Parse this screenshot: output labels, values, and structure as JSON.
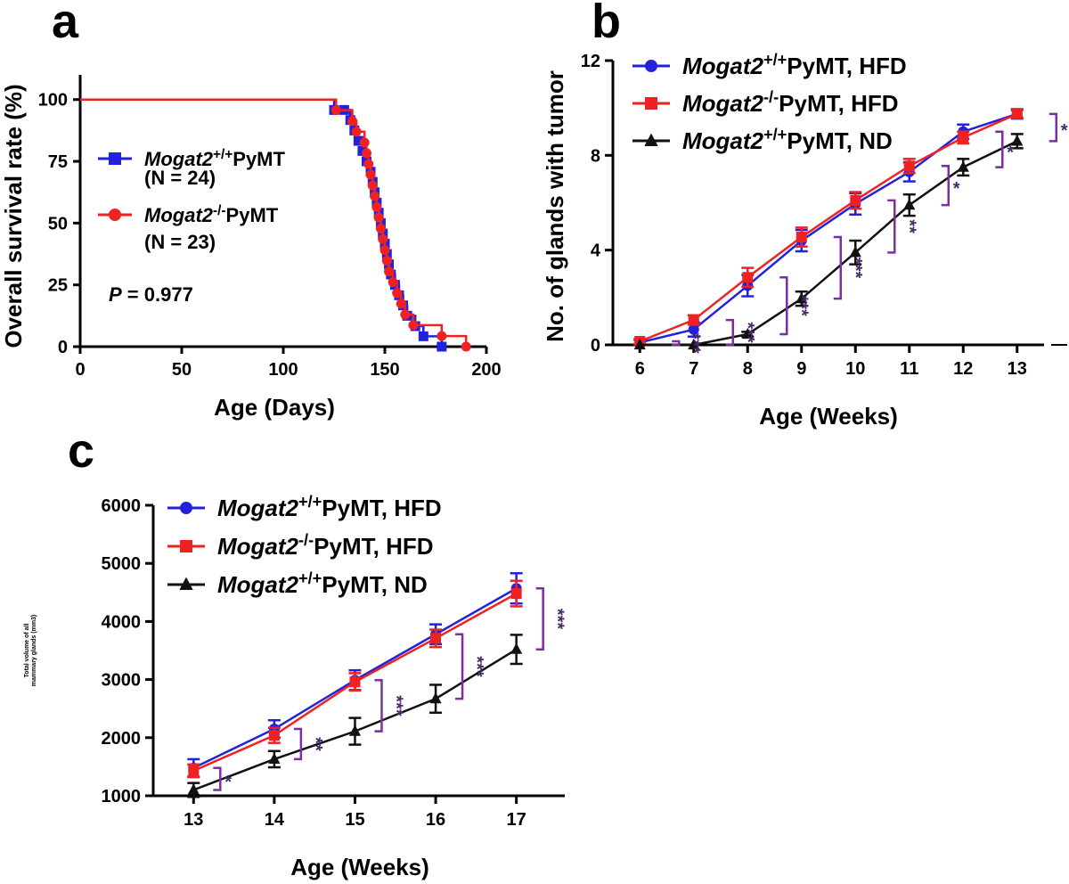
{
  "chart_data": [
    {
      "panel": "a",
      "type": "line",
      "subtype": "step-survival",
      "title": "",
      "xlabel": "Age (Days)",
      "ylabel": "Overall survival rate (%)",
      "xlim": [
        0,
        200
      ],
      "ylim": [
        0,
        110
      ],
      "xticks": [
        0,
        50,
        100,
        150,
        200
      ],
      "yticks": [
        0,
        25,
        50,
        75,
        100
      ],
      "series": [
        {
          "name": "Mogat2",
          "superscript": "+/+",
          "suffix": "PyMT",
          "n_label": "(N = 24)",
          "color": "#2222dd",
          "marker": "square",
          "x": [
            0,
            125,
            130,
            133,
            135,
            137,
            139,
            141,
            143,
            144,
            145,
            146,
            147,
            148,
            149,
            150,
            151,
            152,
            153,
            155,
            157,
            159,
            161,
            165,
            169,
            178
          ],
          "y": [
            100,
            95.8,
            95.8,
            91.7,
            87.5,
            83.3,
            79.2,
            75,
            70.8,
            66.7,
            62.5,
            58.3,
            54.2,
            50,
            45.8,
            41.7,
            37.5,
            33.3,
            29.2,
            25,
            20.8,
            16.7,
            12.5,
            8.3,
            4.2,
            0
          ]
        },
        {
          "name": "Mogat2",
          "superscript": "-/-",
          "suffix": "PyMT",
          "n_label": "(N = 23)",
          "color": "#ee2222",
          "marker": "circle",
          "x": [
            0,
            126,
            134,
            136,
            140,
            141,
            142,
            143,
            144,
            145,
            146,
            147,
            148,
            149,
            150,
            151,
            152,
            154,
            156,
            158,
            160,
            164,
            178,
            190
          ],
          "y": [
            100,
            95.7,
            91.3,
            87,
            82.6,
            78.3,
            73.9,
            69.6,
            65.2,
            60.9,
            56.5,
            52.2,
            47.8,
            43.5,
            39.1,
            34.8,
            30.4,
            26.1,
            21.7,
            17.4,
            13,
            8.7,
            4.3,
            0
          ]
        }
      ],
      "annotations": [
        {
          "italic": "P",
          "text": " = 0.977"
        }
      ]
    },
    {
      "panel": "b",
      "type": "line",
      "title": "",
      "xlabel": "Age (Weeks)",
      "ylabel": "No. of glands with tumor",
      "xlim": [
        5.5,
        13.5
      ],
      "ylim": [
        0,
        12
      ],
      "categories": [
        "6",
        "7",
        "8",
        "9",
        "10",
        "11",
        "12",
        "13"
      ],
      "yticks": [
        0,
        4,
        8,
        12
      ],
      "series": [
        {
          "name": "Mogat2",
          "superscript": "+/+",
          "suffix": "PyMT, HFD",
          "color": "#2222dd",
          "marker": "circle",
          "x": [
            6,
            7,
            8,
            9,
            10,
            11,
            12,
            13
          ],
          "y": [
            0.1,
            0.65,
            2.5,
            4.4,
            5.95,
            7.3,
            9.0,
            9.75
          ],
          "err": [
            0.1,
            0.3,
            0.45,
            0.45,
            0.45,
            0.4,
            0.3,
            0.2
          ]
        },
        {
          "name": "Mogat2",
          "superscript": "-/-",
          "suffix": "PyMT, HFD",
          "color": "#ee2222",
          "marker": "square",
          "x": [
            6,
            7,
            8,
            9,
            10,
            11,
            12,
            13
          ],
          "y": [
            0.15,
            1.05,
            2.85,
            4.55,
            6.1,
            7.55,
            8.75,
            9.75
          ],
          "err": [
            0.1,
            0.2,
            0.4,
            0.4,
            0.35,
            0.3,
            0.25,
            0.15
          ]
        },
        {
          "name": "Mogat2",
          "superscript": "+/+",
          "suffix": "PyMT, ND",
          "color": "#111111",
          "marker": "triangle",
          "x": [
            6,
            7,
            8,
            9,
            10,
            11,
            12,
            13
          ],
          "y": [
            0.0,
            0.0,
            0.45,
            1.95,
            3.9,
            5.9,
            7.5,
            8.6
          ],
          "err": [
            0,
            0,
            0.1,
            0.3,
            0.5,
            0.45,
            0.35,
            0.3
          ]
        }
      ],
      "significance": [
        "***",
        "***",
        "***",
        "***",
        "**",
        "*",
        "*",
        "*"
      ]
    },
    {
      "panel": "c",
      "type": "line",
      "title": "",
      "xlabel": "Age (Weeks)",
      "ylabel": "Total volume of all mammary glands (mm3)",
      "xlim": [
        12.5,
        17.6
      ],
      "ylim": [
        1000,
        6000
      ],
      "categories": [
        "13",
        "14",
        "15",
        "16",
        "17"
      ],
      "yticks": [
        1000,
        2000,
        3000,
        4000,
        5000,
        6000
      ],
      "series": [
        {
          "name": "Mogat2",
          "superscript": "+/+",
          "suffix": "PyMT, HFD",
          "color": "#2222dd",
          "marker": "circle",
          "x": [
            13,
            14,
            15,
            16,
            17
          ],
          "y": [
            1480,
            2150,
            2990,
            3780,
            4570
          ],
          "err": [
            150,
            150,
            170,
            170,
            260
          ]
        },
        {
          "name": "Mogat2",
          "superscript": "-/-",
          "suffix": "PyMT, HFD",
          "color": "#ee2222",
          "marker": "square",
          "x": [
            13,
            14,
            15,
            16,
            17
          ],
          "y": [
            1430,
            2040,
            2960,
            3710,
            4480
          ],
          "err": [
            110,
            130,
            150,
            150,
            220
          ]
        },
        {
          "name": "Mogat2",
          "superscript": "+/+",
          "suffix": "PyMT, ND",
          "color": "#111111",
          "marker": "triangle",
          "x": [
            13,
            14,
            15,
            16,
            17
          ],
          "y": [
            1100,
            1630,
            2110,
            2670,
            3520
          ],
          "err": [
            120,
            140,
            230,
            240,
            250
          ]
        }
      ],
      "significance": [
        "*",
        "**",
        "***",
        "***",
        "***"
      ]
    }
  ],
  "panel_letters": {
    "a": "a",
    "b": "b",
    "c": "c"
  }
}
